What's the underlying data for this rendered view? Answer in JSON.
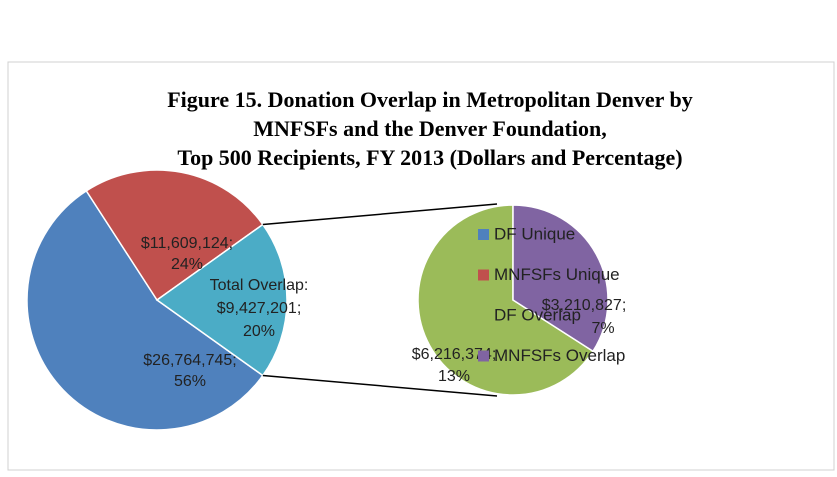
{
  "chart_data": {
    "type": "pie-of-pie",
    "title": [
      "Figure 15. Donation Overlap in Metropolitan Denver by",
      "MNFSFs and the Denver Foundation,",
      "Top 500 Recipients, FY 2013 (Dollars and Percentage)"
    ],
    "legend": "right",
    "primary": {
      "categories": [
        "DF Unique",
        "MNFSFs Unique",
        "Total Overlap:"
      ],
      "values": [
        26764745,
        11609124,
        9427201
      ],
      "value_labels": [
        "$26,764,745;",
        "$11,609,124;",
        "$9,427,201;"
      ],
      "percents": [
        56,
        24,
        20
      ],
      "percent_labels": [
        "56%",
        "24%",
        "20%"
      ],
      "colors": [
        "#4f81bd",
        "#c0504d",
        "#4bacc6"
      ]
    },
    "secondary": {
      "categories": [
        "DF Overlap",
        "MNFSFs Overlap"
      ],
      "values": [
        6216374,
        3210827
      ],
      "value_labels": [
        "$6,216,374;",
        "$3,210,827;"
      ],
      "percents": [
        13,
        7
      ],
      "percent_labels": [
        "13%",
        "7%"
      ],
      "colors": [
        "#9bbb59",
        "#8064a2"
      ]
    }
  }
}
